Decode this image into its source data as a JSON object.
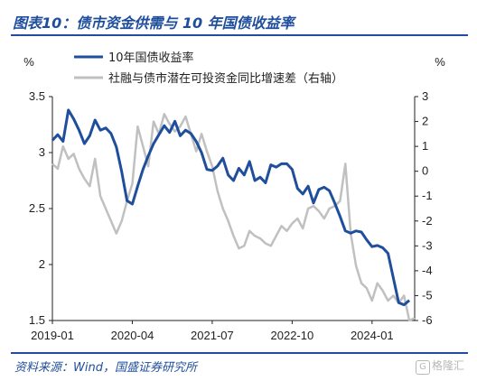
{
  "header": {
    "title": "图表10：债市资金供需与 10 年国债收益率"
  },
  "footer": {
    "source": "资料来源：Wind，国盛证券研究所",
    "watermark": "格隆汇"
  },
  "colors": {
    "brand": "#1f4e9c",
    "series_primary": "#1f4e9c",
    "series_secondary": "#c0c0c0",
    "axis": "#222222"
  },
  "chart_data": {
    "type": "line",
    "left_unit": "%",
    "right_unit": "%",
    "x_ticks": [
      "2019-01",
      "2020-04",
      "2021-07",
      "2022-10",
      "2024-01"
    ],
    "x_range": [
      0,
      68
    ],
    "left_ylim": [
      1.5,
      3.5
    ],
    "left_yticks": [
      "1.5",
      "2",
      "2.5",
      "3",
      "3.5"
    ],
    "right_ylim": [
      -6,
      3
    ],
    "right_yticks": [
      "-6",
      "-5",
      "-4",
      "-3",
      "-2",
      "-1",
      "0",
      "1",
      "2",
      "3"
    ],
    "legend": {
      "placement": "top-center"
    },
    "series": [
      {
        "name": "10年国债收益率",
        "axis": "left",
        "color": "#1f4e9c",
        "values": [
          3.11,
          3.16,
          3.1,
          3.38,
          3.3,
          3.2,
          3.08,
          3.15,
          3.29,
          3.2,
          3.22,
          3.17,
          3.05,
          2.83,
          2.57,
          2.54,
          2.7,
          2.85,
          2.97,
          3.08,
          3.16,
          3.24,
          3.18,
          3.28,
          3.15,
          3.2,
          3.17,
          3.1,
          3.0,
          2.85,
          2.84,
          2.88,
          2.95,
          2.8,
          2.75,
          2.86,
          2.8,
          2.92,
          2.75,
          2.78,
          2.73,
          2.89,
          2.87,
          2.9,
          2.9,
          2.85,
          2.68,
          2.63,
          2.7,
          2.55,
          2.67,
          2.69,
          2.66,
          2.55,
          2.43,
          2.3,
          2.28,
          2.3,
          2.29,
          2.22,
          2.16,
          2.17,
          2.15,
          2.1,
          1.88,
          1.66,
          1.64,
          1.68
        ]
      },
      {
        "name": "社融与债市潜在可投资金同比增速差（右轴）",
        "axis": "right",
        "color": "#c0c0c0",
        "values": [
          0.3,
          0.1,
          1.0,
          0.5,
          0.7,
          0.1,
          -0.3,
          -0.6,
          0.5,
          -1.0,
          -1.5,
          -2.0,
          -2.5,
          -2.0,
          -1.2,
          -0.5,
          1.8,
          1.0,
          0.2,
          2.0,
          1.5,
          2.3,
          1.9,
          1.6,
          1.8,
          2.2,
          1.5,
          0.8,
          1.5,
          0.8,
          0.2,
          -0.8,
          -1.5,
          -2.0,
          -2.6,
          -3.1,
          -3.0,
          -2.4,
          -2.6,
          -2.7,
          -2.9,
          -3.0,
          -2.6,
          -2.2,
          -2.4,
          -2.1,
          -1.9,
          -2.3,
          -1.5,
          -1.4,
          -1.6,
          -1.9,
          -1.5,
          -1.4,
          -1.2,
          0.3,
          -2.5,
          -3.8,
          -4.5,
          -4.7,
          -5.2,
          -4.5,
          -4.8,
          -5.2,
          -5.0,
          -5.3,
          -5.0,
          -6.0,
          -5.9
        ]
      }
    ]
  }
}
